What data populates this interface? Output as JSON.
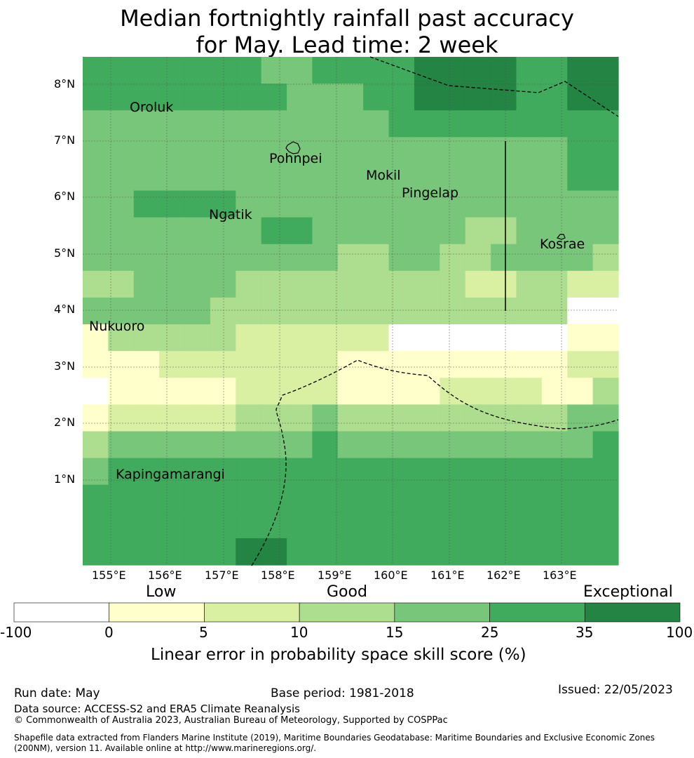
{
  "title_line1": "Median fortnightly rainfall past accuracy",
  "title_line2": "for May. Lead time: 2 week",
  "map": {
    "lon_ticks": [
      "155°E",
      "156°E",
      "157°E",
      "158°E",
      "159°E",
      "160°E",
      "161°E",
      "162°E",
      "163°E"
    ],
    "lat_ticks": [
      "8°N",
      "7°N",
      "6°N",
      "5°N",
      "4°N",
      "3°N",
      "2°N",
      "1°N"
    ],
    "places": [
      {
        "name": "Oroluk"
      },
      {
        "name": "Pohnpei"
      },
      {
        "name": "Mokil"
      },
      {
        "name": "Pingelap"
      },
      {
        "name": "Ngatik"
      },
      {
        "name": "Kosrae"
      },
      {
        "name": "Nukuoro"
      },
      {
        "name": "Kapingamarangi"
      }
    ],
    "colors": [
      "#ffffff",
      "#ffffcc",
      "#d9f0a3",
      "#addd8e",
      "#78c679",
      "#41ab5d",
      "#238443"
    ],
    "grid_categories": [
      [
        5,
        5,
        5,
        5,
        5,
        5,
        5,
        4,
        4,
        5,
        5,
        5,
        5,
        6,
        6,
        6,
        6,
        5,
        5,
        6,
        6
      ],
      [
        5,
        5,
        5,
        5,
        5,
        5,
        5,
        5,
        4,
        4,
        4,
        5,
        5,
        6,
        6,
        6,
        6,
        5,
        5,
        6,
        6
      ],
      [
        4,
        4,
        4,
        4,
        4,
        4,
        4,
        4,
        4,
        4,
        4,
        4,
        5,
        5,
        5,
        5,
        5,
        5,
        5,
        5,
        5
      ],
      [
        4,
        4,
        4,
        4,
        4,
        4,
        4,
        4,
        4,
        4,
        4,
        4,
        4,
        4,
        4,
        4,
        4,
        4,
        4,
        5,
        5
      ],
      [
        4,
        4,
        4,
        4,
        4,
        4,
        4,
        4,
        4,
        4,
        4,
        4,
        4,
        4,
        4,
        4,
        4,
        4,
        4,
        5,
        5
      ],
      [
        4,
        4,
        5,
        5,
        5,
        5,
        4,
        4,
        4,
        4,
        4,
        4,
        4,
        4,
        4,
        4,
        4,
        4,
        4,
        4,
        4
      ],
      [
        4,
        4,
        4,
        4,
        4,
        4,
        4,
        5,
        5,
        4,
        4,
        4,
        4,
        4,
        4,
        3,
        3,
        4,
        4,
        4,
        4
      ],
      [
        4,
        4,
        4,
        4,
        4,
        4,
        4,
        4,
        4,
        4,
        3,
        3,
        4,
        4,
        3,
        3,
        4,
        4,
        4,
        4,
        3
      ],
      [
        3,
        3,
        4,
        4,
        4,
        4,
        3,
        3,
        3,
        3,
        3,
        3,
        3,
        3,
        3,
        2,
        2,
        3,
        3,
        2,
        2
      ],
      [
        4,
        4,
        4,
        4,
        4,
        3,
        3,
        3,
        3,
        3,
        3,
        3,
        3,
        3,
        3,
        3,
        3,
        3,
        3,
        0,
        0
      ],
      [
        1,
        3,
        3,
        3,
        3,
        3,
        2,
        2,
        2,
        2,
        2,
        2,
        0,
        0,
        0,
        0,
        0,
        0,
        0,
        1,
        1
      ],
      [
        1,
        1,
        1,
        2,
        2,
        2,
        2,
        2,
        2,
        2,
        1,
        1,
        1,
        1,
        1,
        1,
        1,
        1,
        1,
        2,
        2
      ],
      [
        0,
        1,
        1,
        1,
        1,
        1,
        2,
        2,
        2,
        2,
        1,
        1,
        1,
        1,
        2,
        2,
        2,
        2,
        1,
        1,
        3
      ],
      [
        1,
        2,
        2,
        2,
        2,
        2,
        3,
        3,
        3,
        4,
        3,
        3,
        3,
        3,
        3,
        3,
        3,
        3,
        3,
        4,
        4
      ],
      [
        3,
        4,
        4,
        4,
        4,
        4,
        4,
        4,
        4,
        5,
        4,
        4,
        4,
        4,
        4,
        4,
        4,
        4,
        4,
        4,
        5
      ],
      [
        4,
        5,
        5,
        5,
        5,
        5,
        5,
        5,
        5,
        5,
        5,
        5,
        5,
        5,
        5,
        5,
        5,
        5,
        5,
        5,
        5
      ],
      [
        5,
        5,
        5,
        5,
        5,
        5,
        5,
        5,
        5,
        5,
        5,
        5,
        5,
        5,
        5,
        5,
        5,
        5,
        5,
        5,
        5
      ],
      [
        5,
        5,
        5,
        5,
        5,
        5,
        5,
        5,
        5,
        5,
        5,
        5,
        5,
        5,
        5,
        5,
        5,
        5,
        5,
        5,
        5
      ],
      [
        5,
        5,
        5,
        5,
        5,
        5,
        6,
        6,
        5,
        5,
        5,
        5,
        5,
        5,
        5,
        5,
        5,
        5,
        5,
        5,
        5
      ]
    ]
  },
  "colorbar": {
    "category_labels": [
      "Low",
      "Good",
      "Exceptional"
    ],
    "ticks": [
      "-100",
      "0",
      "5",
      "10",
      "15",
      "25",
      "35",
      "100"
    ],
    "label": "Linear error in probability space skill score (%)"
  },
  "footer": {
    "run_date": "Run date: May",
    "base_period": "Base period: 1981-2018",
    "issued": "Issued: 22/05/2023",
    "data_source": "Data source: ACCESS-S2 and ERA5 Climate Reanalysis",
    "copyright": "© Commonwealth of Australia 2023, Australian Bureau of Meteorology, Supported by COSPPac",
    "shapefile_line1": "Shapefile data extracted from Flanders Marine Institute (2019), Maritime Boundaries Geodatabase: Maritime Boundaries and Exclusive Economic Zones",
    "shapefile_line2": "(200NM), version 11. Available online at http://www.marineregions.org/."
  }
}
